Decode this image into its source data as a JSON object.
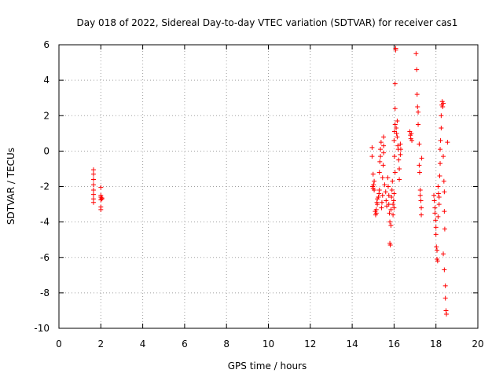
{
  "colors": {
    "points": "#ff0000",
    "grid": "#a0a0a0",
    "axes": "#000000",
    "background": "#ffffff"
  },
  "chart_data": {
    "type": "scatter",
    "title": "Day 018 of 2022, Sidereal Day-to-day VTEC variation (SDTVAR) for receiver cas1",
    "xlabel": "GPS time / hours",
    "ylabel": "SDTVAR / TECUs",
    "xlim": [
      0,
      20
    ],
    "ylim": [
      -10,
      6
    ],
    "grid": true,
    "marker": "+",
    "xticks": [
      0,
      2,
      4,
      6,
      8,
      10,
      12,
      14,
      16,
      18,
      20
    ],
    "yticks": [
      -10,
      -8,
      -6,
      -4,
      -2,
      0,
      2,
      4,
      6
    ],
    "xtick_labels": [
      "0",
      "2",
      "4",
      "6",
      "8",
      "10",
      "12",
      "14",
      "16",
      "18",
      "20"
    ],
    "ytick_labels": [
      "-10",
      "-8",
      "-6",
      "-4",
      "-2",
      "0",
      "2",
      "4",
      "6"
    ],
    "series": [
      {
        "name": "SDTVAR",
        "points": [
          [
            1.65,
            -1.05
          ],
          [
            1.65,
            -1.3
          ],
          [
            1.65,
            -1.6
          ],
          [
            1.65,
            -1.9
          ],
          [
            1.65,
            -2.2
          ],
          [
            1.65,
            -2.45
          ],
          [
            1.65,
            -2.7
          ],
          [
            1.65,
            -2.9
          ],
          [
            2.0,
            -2.05
          ],
          [
            2.0,
            -2.5
          ],
          [
            2.0,
            -2.6
          ],
          [
            2.0,
            -2.75
          ],
          [
            2.0,
            -3.15
          ],
          [
            2.0,
            -3.3
          ],
          [
            2.05,
            -2.65
          ],
          [
            2.05,
            -2.7
          ],
          [
            14.95,
            0.2
          ],
          [
            14.95,
            -0.3
          ],
          [
            14.98,
            -2.0
          ],
          [
            15.0,
            -2.1
          ],
          [
            15.0,
            -1.3
          ],
          [
            15.02,
            -1.9
          ],
          [
            15.05,
            -1.7
          ],
          [
            15.05,
            -2.2
          ],
          [
            15.1,
            -3.4
          ],
          [
            15.12,
            -3.6
          ],
          [
            15.15,
            -3.5
          ],
          [
            15.15,
            -3.3
          ],
          [
            15.18,
            -2.9
          ],
          [
            15.2,
            -2.7
          ],
          [
            15.2,
            -3.0
          ],
          [
            15.25,
            -2.6
          ],
          [
            15.28,
            -2.4
          ],
          [
            15.3,
            -2.2
          ],
          [
            15.3,
            -1.2
          ],
          [
            15.32,
            -0.6
          ],
          [
            15.35,
            -0.3
          ],
          [
            15.35,
            0.1
          ],
          [
            15.38,
            0.5
          ],
          [
            15.4,
            -3.2
          ],
          [
            15.42,
            -2.9
          ],
          [
            15.45,
            -2.5
          ],
          [
            15.45,
            -1.5
          ],
          [
            15.48,
            -0.8
          ],
          [
            15.5,
            -0.1
          ],
          [
            15.5,
            0.3
          ],
          [
            15.5,
            0.8
          ],
          [
            15.55,
            -1.9
          ],
          [
            15.6,
            -2.3
          ],
          [
            15.62,
            -2.8
          ],
          [
            15.65,
            -3.1
          ],
          [
            15.7,
            -1.5
          ],
          [
            15.72,
            -2.0
          ],
          [
            15.75,
            -2.5
          ],
          [
            15.75,
            -3.0
          ],
          [
            15.78,
            -3.5
          ],
          [
            15.8,
            -4.0
          ],
          [
            15.8,
            -5.2
          ],
          [
            15.82,
            -5.3
          ],
          [
            15.85,
            -3.3
          ],
          [
            15.85,
            -4.2
          ],
          [
            15.88,
            -2.6
          ],
          [
            15.9,
            -2.2
          ],
          [
            15.92,
            -1.7
          ],
          [
            15.95,
            -3.0
          ],
          [
            15.95,
            -3.6
          ],
          [
            15.98,
            -2.8
          ],
          [
            16.0,
            -2.4
          ],
          [
            16.0,
            -3.2
          ],
          [
            16.0,
            0.6
          ],
          [
            16.02,
            1.1
          ],
          [
            16.02,
            -0.3
          ],
          [
            16.05,
            1.5
          ],
          [
            16.05,
            -1.2
          ],
          [
            16.05,
            2.4
          ],
          [
            16.05,
            3.8
          ],
          [
            16.08,
            5.7
          ],
          [
            16.08,
            5.8
          ],
          [
            16.1,
            1.3
          ],
          [
            16.12,
            1.0
          ],
          [
            16.15,
            1.7
          ],
          [
            16.15,
            0.8
          ],
          [
            16.18,
            0.3
          ],
          [
            16.2,
            0.1
          ],
          [
            16.22,
            -0.5
          ],
          [
            16.25,
            -1.0
          ],
          [
            16.25,
            -1.6
          ],
          [
            16.3,
            -0.2
          ],
          [
            16.3,
            0.4
          ],
          [
            16.32,
            0.1
          ],
          [
            16.75,
            1.1
          ],
          [
            16.78,
            0.9
          ],
          [
            16.8,
            0.7
          ],
          [
            16.82,
            1.0
          ],
          [
            16.85,
            0.6
          ],
          [
            17.05,
            5.5
          ],
          [
            17.08,
            4.6
          ],
          [
            17.1,
            3.2
          ],
          [
            17.12,
            2.5
          ],
          [
            17.15,
            2.2
          ],
          [
            17.15,
            1.5
          ],
          [
            17.2,
            0.4
          ],
          [
            17.2,
            -0.8
          ],
          [
            17.22,
            -1.2
          ],
          [
            17.25,
            -2.2
          ],
          [
            17.25,
            -2.5
          ],
          [
            17.28,
            -2.8
          ],
          [
            17.3,
            -3.2
          ],
          [
            17.3,
            -3.6
          ],
          [
            17.32,
            -0.4
          ],
          [
            17.9,
            -2.5
          ],
          [
            17.92,
            -2.8
          ],
          [
            17.95,
            -3.2
          ],
          [
            17.95,
            -3.5
          ],
          [
            17.98,
            -3.9
          ],
          [
            18.0,
            -4.3
          ],
          [
            18.0,
            -4.7
          ],
          [
            18.02,
            -5.4
          ],
          [
            18.05,
            -5.6
          ],
          [
            18.05,
            -6.1
          ],
          [
            18.08,
            -6.2
          ],
          [
            18.1,
            -3.7
          ],
          [
            18.1,
            -2.0
          ],
          [
            18.12,
            -2.4
          ],
          [
            18.15,
            -2.6
          ],
          [
            18.15,
            -3.0
          ],
          [
            18.18,
            -1.4
          ],
          [
            18.2,
            -0.7
          ],
          [
            18.2,
            0.1
          ],
          [
            18.22,
            0.6
          ],
          [
            18.25,
            1.3
          ],
          [
            18.25,
            2.0
          ],
          [
            18.28,
            2.6
          ],
          [
            18.3,
            2.8
          ],
          [
            18.32,
            2.5
          ],
          [
            18.35,
            2.7
          ],
          [
            18.35,
            -0.3
          ],
          [
            18.38,
            -1.7
          ],
          [
            18.4,
            -2.3
          ],
          [
            18.4,
            -3.4
          ],
          [
            18.42,
            -4.4
          ],
          [
            18.35,
            -5.8
          ],
          [
            18.4,
            -6.7
          ],
          [
            18.45,
            -7.6
          ],
          [
            18.45,
            -8.3
          ],
          [
            18.48,
            -9.0
          ],
          [
            18.5,
            -9.2
          ],
          [
            18.55,
            0.5
          ]
        ]
      }
    ]
  }
}
